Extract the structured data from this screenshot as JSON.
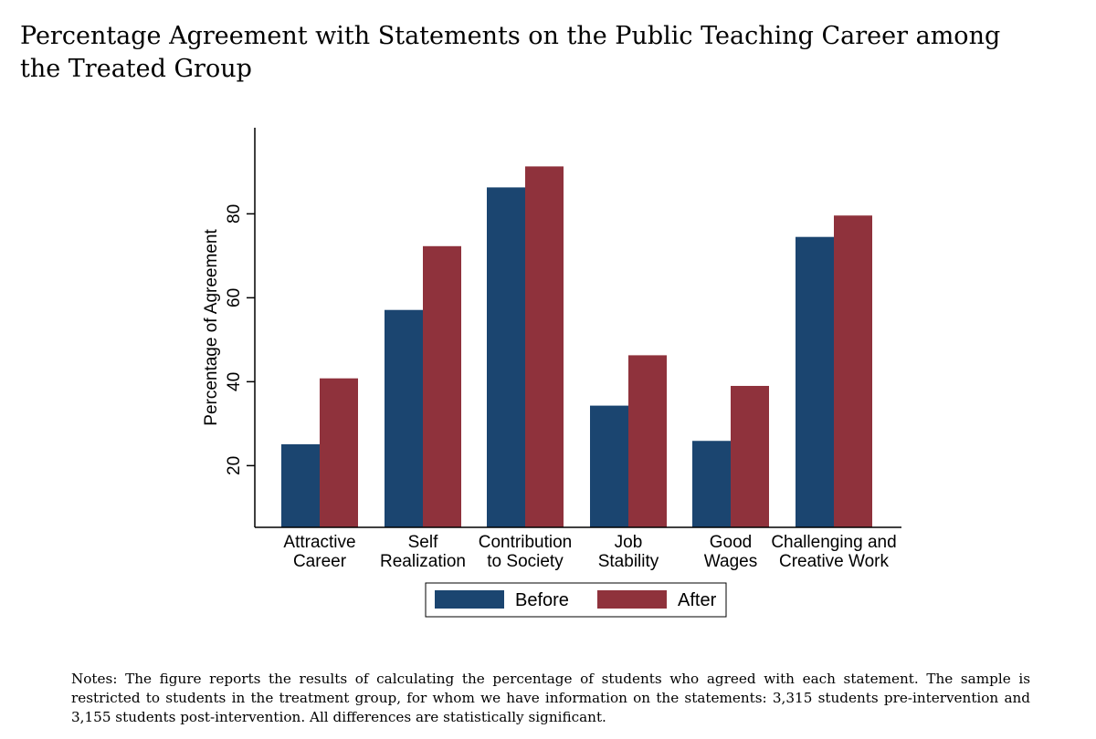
{
  "title": "Percentage Agreement with Statements on the Public Teaching Career among the Treated Group",
  "notes": "Notes: The figure reports the results of calculating the percentage of students who agreed with each statement. The sample is restricted to students in the treatment group, for whom we have information on the statements: 3,315 students pre-intervention and 3,155 students post-intervention. All differences are statistically significant.",
  "colors": {
    "before": "#1b4570",
    "after": "#8f323c"
  },
  "chart_data": {
    "type": "bar",
    "title": "Percentage Agreement with Statements on the Public Teaching Career among the Treated Group",
    "xlabel": "",
    "ylabel": "Percentage of Agreement",
    "yticks": [
      "20",
      "40",
      "60",
      "80"
    ],
    "ylim": [
      5.3,
      95
    ],
    "grid": false,
    "legend_position": "bottom",
    "categories": [
      [
        "Attractive",
        "Career"
      ],
      [
        "Self",
        "Realization"
      ],
      [
        "Contribution",
        "to Society"
      ],
      [
        "Job",
        "Stability"
      ],
      [
        "Good",
        "Wages"
      ],
      [
        "Challenging and",
        "Creative Work"
      ]
    ],
    "series": [
      {
        "name": "Before",
        "values": [
          25.1,
          57.1,
          86.3,
          34.3,
          25.9,
          74.5
        ]
      },
      {
        "name": "After",
        "values": [
          40.8,
          72.3,
          91.3,
          46.3,
          39.0,
          79.6
        ]
      }
    ]
  }
}
